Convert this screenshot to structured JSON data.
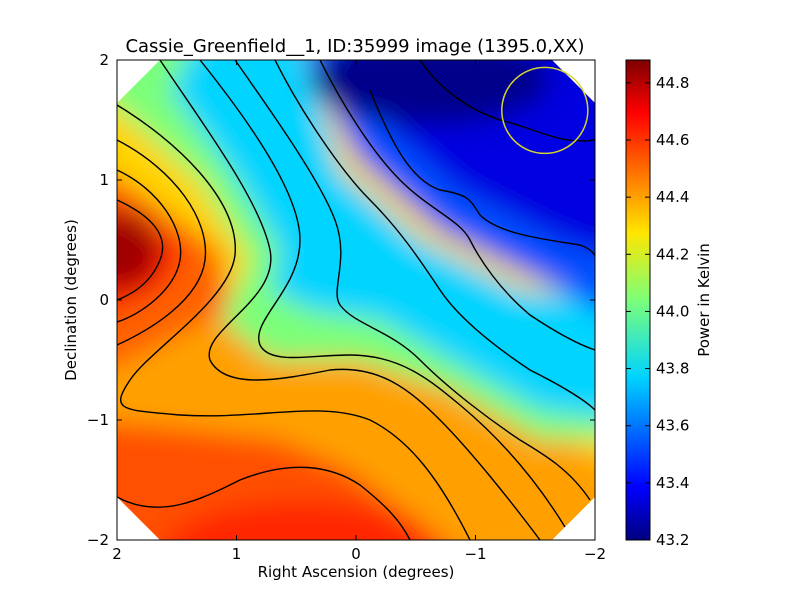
{
  "chart_data": {
    "type": "heatmap",
    "title": "Cassie_Greenfield__1, ID:35999 image (1395.0,XX)",
    "xlabel": "Right Ascension (degrees)",
    "ylabel": "Declination (degrees)",
    "xlim": [
      2,
      -2
    ],
    "ylim": [
      -2,
      2
    ],
    "x_ticks": [
      2,
      1,
      0,
      -1,
      -2
    ],
    "x_tick_labels": [
      "2",
      "1",
      "0",
      "−1",
      "−2"
    ],
    "y_ticks": [
      2,
      1,
      0,
      -1,
      -2
    ],
    "y_tick_labels": [
      "2",
      "1",
      "0",
      "−1",
      "−2"
    ],
    "colormap": "jet",
    "colorbar": {
      "label": "Power in Kelvin",
      "min": 43.2,
      "max": 44.88,
      "ticks": [
        44.8,
        44.6,
        44.4,
        44.2,
        44.0,
        43.8,
        43.6,
        43.4,
        43.2
      ],
      "tick_labels": [
        "44.8",
        "44.6",
        "44.4",
        "44.2",
        "44.0",
        "43.8",
        "43.6",
        "43.4",
        "43.2"
      ]
    },
    "features": [
      {
        "name": "maximum",
        "ra": 2.0,
        "dec": 0.4,
        "value": 44.85
      },
      {
        "name": "minimum",
        "ra": -0.5,
        "dec": 1.9,
        "value": 43.22
      },
      {
        "name": "southern-bump",
        "ra": 0.4,
        "dec": -1.9,
        "value": 44.65
      }
    ],
    "grid": false,
    "beam_circle": {
      "ra": -1.58,
      "dec": 1.58,
      "radius": 0.36,
      "color": "#d4d430"
    }
  }
}
